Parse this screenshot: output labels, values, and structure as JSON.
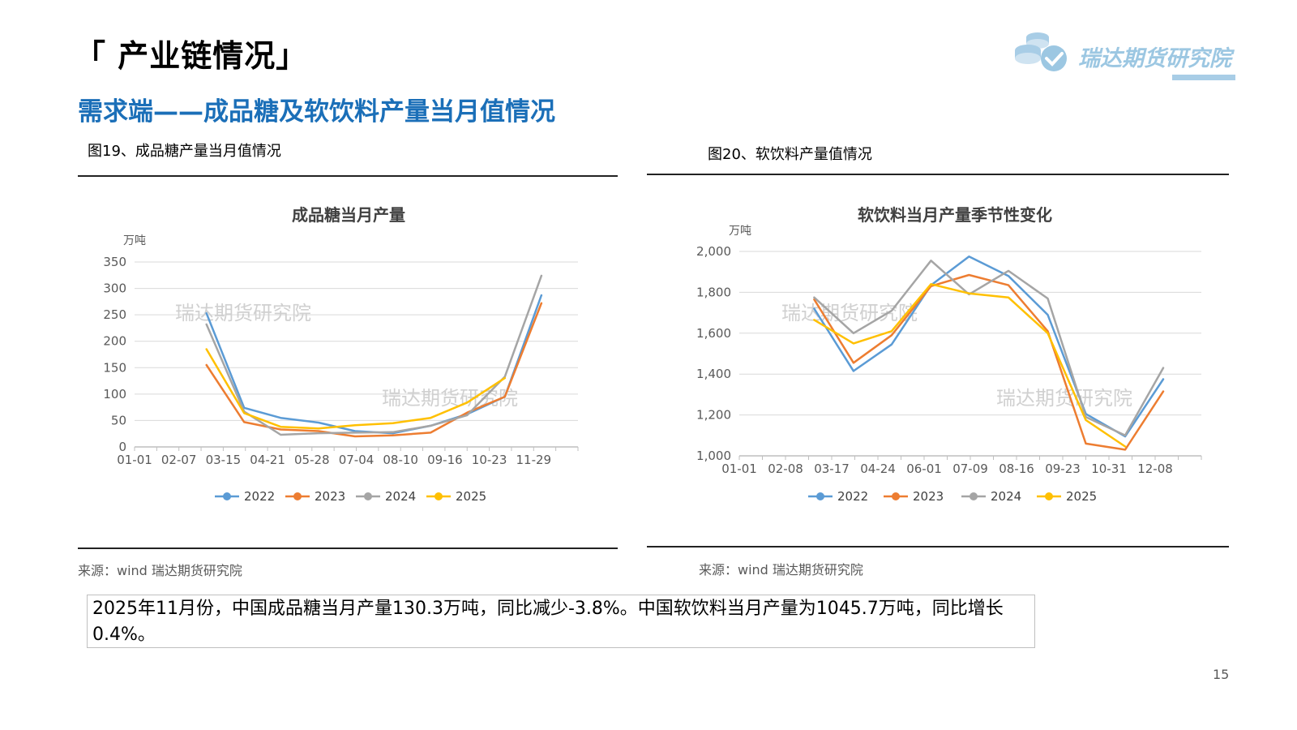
{
  "header": {
    "section_title": "「 产业链情况」",
    "subtitle": "需求端——成品糖及软饮料产量当月值情况",
    "logo_text": "瑞达期货研究院"
  },
  "figures": [
    {
      "caption": "图19、成品糖产量当月值情况",
      "source": "来源：wind   瑞达期货研究院"
    },
    {
      "caption": "图20、软饮料产量值情况",
      "source": "来源：wind   瑞达期货研究院"
    }
  ],
  "summary": "2025年11月份，中国成品糖当月产量130.3万吨，同比减少-3.8%。中国软饮料当月产量为1045.7万吨，同比增长0.4%。",
  "page_number": "15",
  "colors": {
    "2022": "#5b9bd5",
    "2023": "#ed7d31",
    "2024": "#a5a5a5",
    "2025": "#ffc000"
  },
  "chart_data": [
    {
      "type": "line",
      "title": "成品糖当月产量",
      "ylabel": "万吨",
      "watermark": "瑞达期货研究院",
      "x_ticks": [
        "01-01",
        "02-07",
        "03-15",
        "04-21",
        "05-28",
        "07-04",
        "08-10",
        "09-16",
        "10-23",
        "11-29"
      ],
      "ylim": [
        0,
        350
      ],
      "y_ticks": [
        0,
        50,
        100,
        150,
        200,
        250,
        300,
        350
      ],
      "x_domain": [
        1,
        365
      ],
      "series": [
        {
          "name": "2022",
          "x": [
            60,
            91,
            121,
            152,
            182,
            213,
            244,
            274,
            305,
            335
          ],
          "values": [
            253,
            74,
            55,
            46,
            30,
            26,
            40,
            62,
            95,
            287
          ]
        },
        {
          "name": "2023",
          "x": [
            60,
            91,
            121,
            152,
            182,
            213,
            244,
            274,
            305,
            335
          ],
          "values": [
            155,
            47,
            33,
            30,
            20,
            22,
            27,
            65,
            95,
            272
          ]
        },
        {
          "name": "2024",
          "x": [
            60,
            91,
            121,
            152,
            182,
            213,
            244,
            274,
            305,
            335
          ],
          "values": [
            232,
            67,
            23,
            26,
            27,
            28,
            40,
            60,
            133,
            324
          ]
        },
        {
          "name": "2025",
          "x": [
            60,
            91,
            121,
            152,
            182,
            213,
            244,
            274,
            305
          ],
          "values": [
            185,
            64,
            38,
            35,
            41,
            45,
            55,
            84,
            130.3
          ]
        }
      ]
    },
    {
      "type": "line",
      "title": "软饮料当月产量季节性变化",
      "ylabel": "万吨",
      "watermark": "瑞达期货研究院",
      "x_ticks": [
        "01-01",
        "02-08",
        "03-17",
        "04-24",
        "06-01",
        "07-09",
        "08-16",
        "09-23",
        "10-31",
        "12-08"
      ],
      "ylim": [
        1000,
        2000
      ],
      "y_ticks": [
        "1,000",
        "1,200",
        "1,400",
        "1,600",
        "1,800",
        "2,000"
      ],
      "y_tick_values": [
        1000,
        1200,
        1400,
        1600,
        1800,
        2000
      ],
      "x_domain": [
        1,
        365
      ],
      "series": [
        {
          "name": "2022",
          "x": [
            60,
            91,
            121,
            152,
            182,
            213,
            244,
            274,
            305,
            335
          ],
          "values": [
            1720,
            1415,
            1545,
            1835,
            1975,
            1880,
            1690,
            1205,
            1095,
            1375
          ]
        },
        {
          "name": "2023",
          "x": [
            60,
            91,
            121,
            152,
            182,
            213,
            244,
            274,
            305,
            335
          ],
          "values": [
            1765,
            1455,
            1590,
            1830,
            1885,
            1835,
            1610,
            1060,
            1030,
            1315
          ]
        },
        {
          "name": "2024",
          "x": [
            60,
            91,
            121,
            152,
            182,
            213,
            244,
            274,
            305,
            335
          ],
          "values": [
            1775,
            1600,
            1710,
            1955,
            1790,
            1905,
            1770,
            1190,
            1100,
            1430
          ]
        },
        {
          "name": "2025",
          "x": [
            60,
            91,
            121,
            152,
            182,
            213,
            244,
            274,
            305
          ],
          "values": [
            1665,
            1550,
            1610,
            1840,
            1795,
            1775,
            1600,
            1175,
            1045.7
          ]
        }
      ]
    }
  ]
}
